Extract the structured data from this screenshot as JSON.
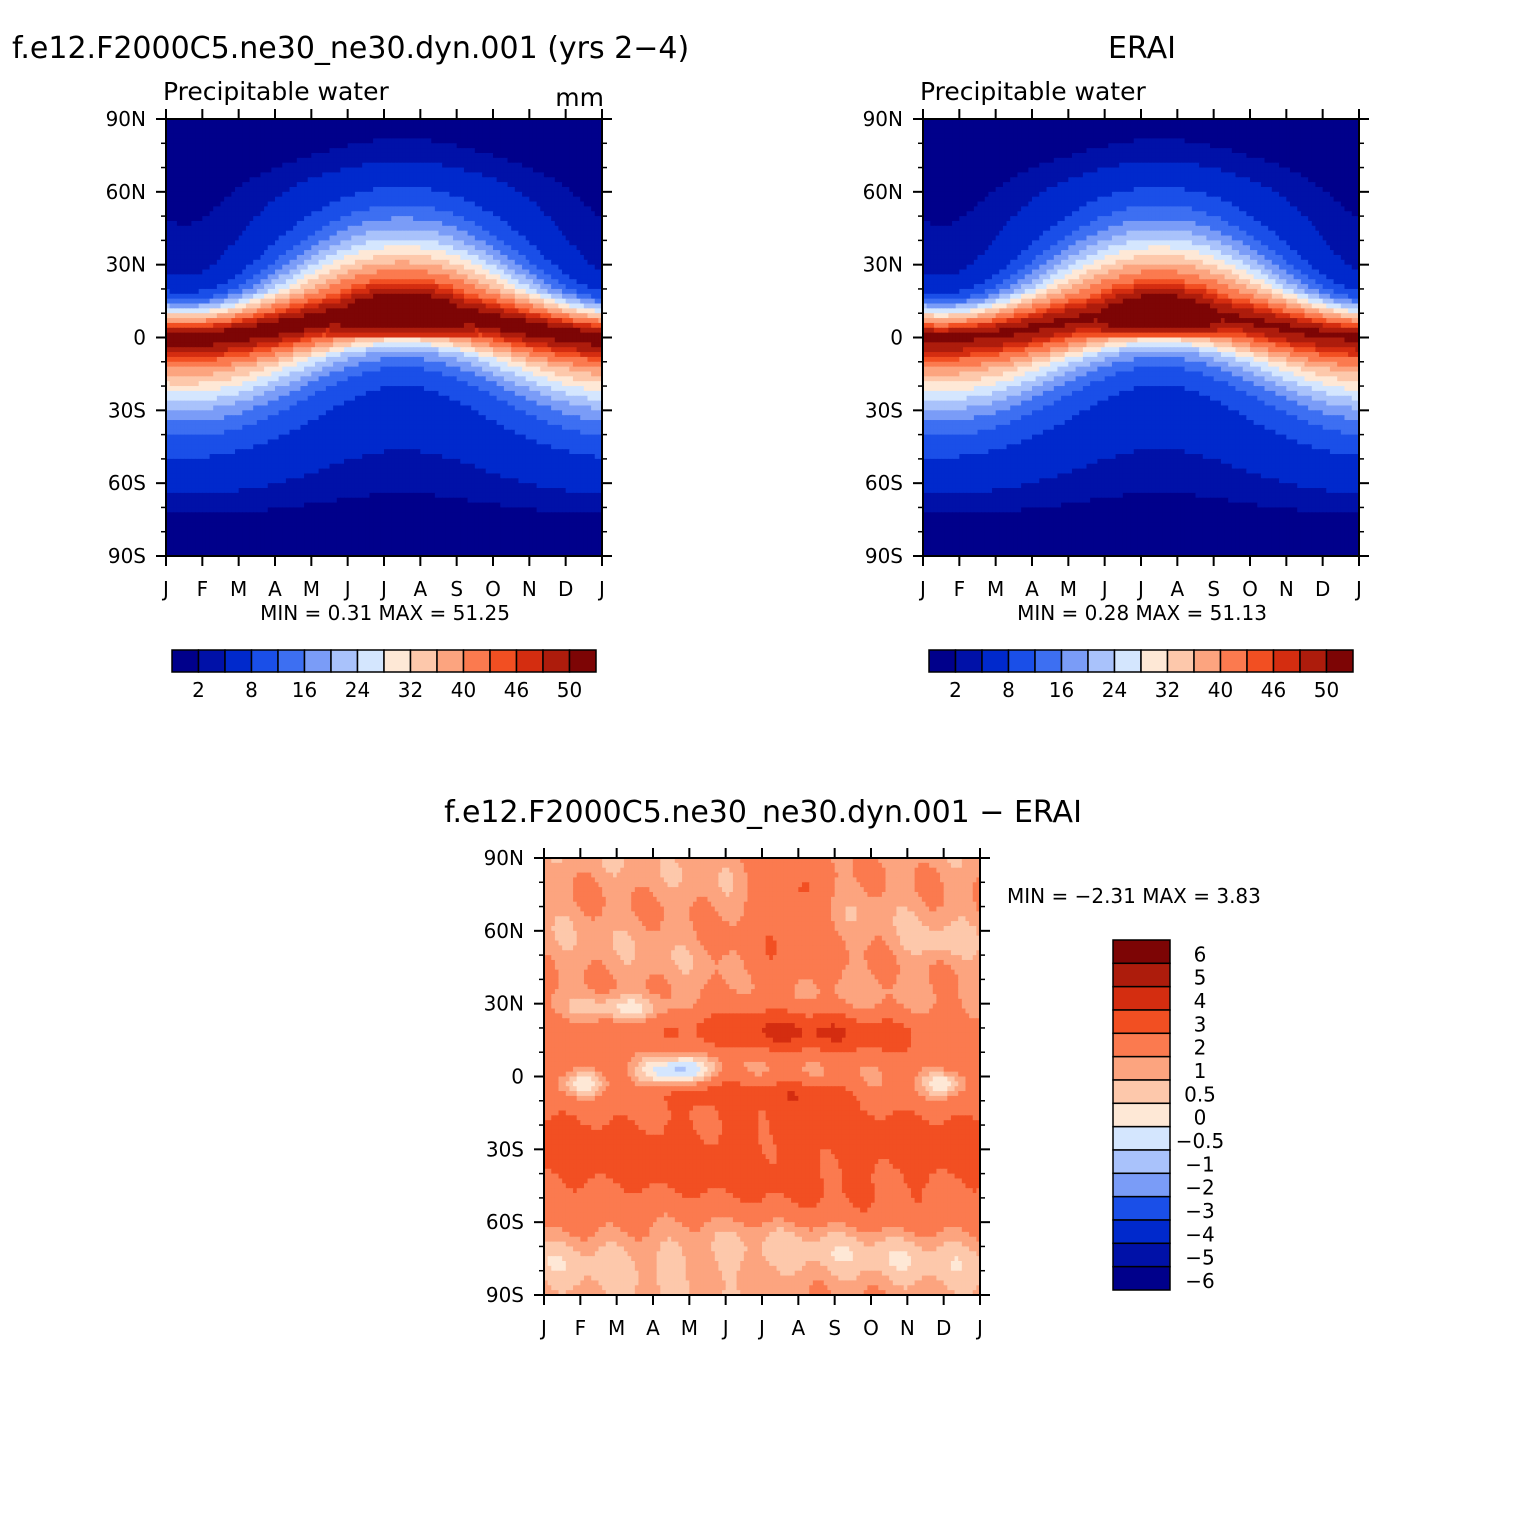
{
  "palettes": {
    "abs": [
      "#00008b",
      "#0011a8",
      "#0029cc",
      "#1a4fe8",
      "#3d6ff2",
      "#7a9cf7",
      "#a9c2fb",
      "#d4e6fe",
      "#fee8d6",
      "#fdc8ab",
      "#fca47f",
      "#fb7a4f",
      "#f24f22",
      "#d42d10",
      "#ad1c0c",
      "#7d0505"
    ],
    "diff": [
      "#00008b",
      "#0011a8",
      "#0029cc",
      "#1a4fe8",
      "#7a9cf7",
      "#a9c2fb",
      "#d4e6fe",
      "#fee8d6",
      "#fdc8ab",
      "#fca47f",
      "#fb7a4f",
      "#f24f22",
      "#d42d10",
      "#ad1c0c",
      "#7d0505"
    ]
  },
  "panels": [
    {
      "header": "f.e12.F2000C5.ne30_ne30.dyn.001 (yrs 2−4)",
      "subtitle": "Precipitable water",
      "units": "mm",
      "minmax": "MIN =     0.31  MAX =    51.25",
      "colorbar_labels": [
        "2",
        "8",
        "16",
        "24",
        "32",
        "40",
        "46",
        "50"
      ]
    },
    {
      "header": "ERAI",
      "subtitle": "Precipitable water",
      "units": "",
      "minmax": "MIN =     0.28  MAX =    51.13",
      "colorbar_labels": [
        "2",
        "8",
        "16",
        "24",
        "32",
        "40",
        "46",
        "50"
      ]
    },
    {
      "header": "f.e12.F2000C5.ne30_ne30.dyn.001 − ERAI",
      "subtitle": "",
      "units": "",
      "minmax": "MIN =    −2.31  MAX =     3.83",
      "colorbar_labels": [
        "6",
        "5",
        "4",
        "3",
        "2",
        "1",
        "0.5",
        "0",
        "−0.5",
        "−1",
        "−2",
        "−3",
        "−4",
        "−5",
        "−6"
      ]
    }
  ],
  "chart_data": [
    {
      "type": "heatmap",
      "title": "f.e12.F2000C5.ne30_ne30.dyn.001 (yrs 2−4)",
      "subtitle": "Precipitable water",
      "units": "mm",
      "x_tick_labels": [
        "J",
        "F",
        "M",
        "A",
        "M",
        "J",
        "J",
        "A",
        "S",
        "O",
        "N",
        "D",
        "J"
      ],
      "y_tick_labels": [
        "90N",
        "60N",
        "30N",
        "0",
        "30S",
        "60S",
        "90S"
      ],
      "y_range": [
        -90,
        90
      ],
      "levels": [
        2,
        4,
        8,
        12,
        16,
        20,
        24,
        28,
        32,
        36,
        40,
        44,
        46,
        48,
        50
      ],
      "min": 0.31,
      "max": 51.25,
      "model": "cam"
    },
    {
      "type": "heatmap",
      "title": "ERAI",
      "subtitle": "Precipitable water",
      "x_tick_labels": [
        "J",
        "F",
        "M",
        "A",
        "M",
        "J",
        "J",
        "A",
        "S",
        "O",
        "N",
        "D",
        "J"
      ],
      "y_tick_labels": [
        "90N",
        "60N",
        "30N",
        "0",
        "30S",
        "60S",
        "90S"
      ],
      "y_range": [
        -90,
        90
      ],
      "levels": [
        2,
        4,
        8,
        12,
        16,
        20,
        24,
        28,
        32,
        36,
        40,
        44,
        46,
        48,
        50
      ],
      "min": 0.28,
      "max": 51.13,
      "model": "erai"
    },
    {
      "type": "heatmap",
      "title": "f.e12.F2000C5.ne30_ne30.dyn.001 − ERAI",
      "x_tick_labels": [
        "J",
        "F",
        "M",
        "A",
        "M",
        "J",
        "J",
        "A",
        "S",
        "O",
        "N",
        "D",
        "J"
      ],
      "y_tick_labels": [
        "90N",
        "60N",
        "30N",
        "0",
        "30S",
        "60S",
        "90S"
      ],
      "y_range": [
        -90,
        90
      ],
      "levels": [
        -6,
        -5,
        -4,
        -3,
        -2,
        -1,
        -0.5,
        0,
        0.5,
        1,
        2,
        3,
        4,
        5,
        6
      ],
      "min": -2.31,
      "max": 3.83,
      "model": "diff"
    }
  ]
}
